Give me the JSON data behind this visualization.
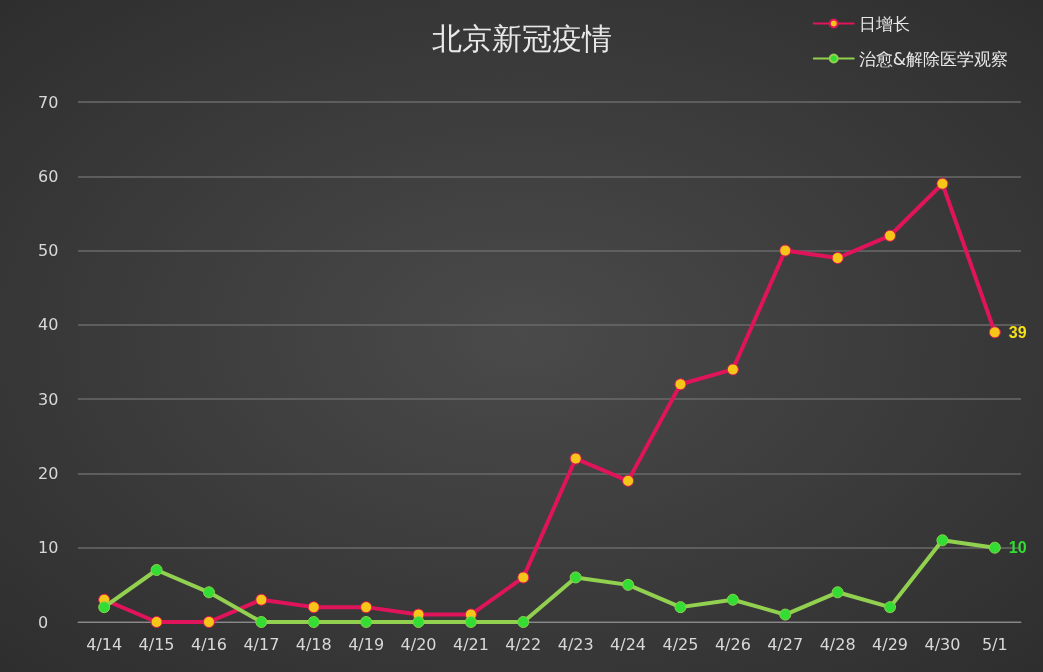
{
  "chart_data": {
    "type": "line",
    "title": "北京新冠疫情",
    "categories": [
      "4/14",
      "4/15",
      "4/16",
      "4/17",
      "4/18",
      "4/19",
      "4/20",
      "4/21",
      "4/22",
      "4/23",
      "4/24",
      "4/25",
      "4/26",
      "4/27",
      "4/28",
      "4/29",
      "4/30",
      "5/1"
    ],
    "series": [
      {
        "name": "日增长",
        "color": "#e0145a",
        "values": [
          3,
          0,
          0,
          3,
          2,
          2,
          1,
          1,
          6,
          22,
          19,
          32,
          34,
          50,
          49,
          52,
          59,
          39
        ],
        "value_labels": [
          null,
          null,
          null,
          null,
          null,
          null,
          null,
          null,
          null,
          null,
          null,
          null,
          null,
          null,
          null,
          null,
          null,
          "39"
        ]
      },
      {
        "name": "治愈&解除医学观察",
        "color": "#92d050",
        "values": [
          2,
          7,
          4,
          0,
          0,
          0,
          0,
          0,
          0,
          6,
          5,
          2,
          3,
          1,
          4,
          2,
          11,
          10
        ],
        "value_labels": [
          null,
          null,
          null,
          null,
          null,
          null,
          null,
          null,
          null,
          null,
          null,
          null,
          null,
          null,
          null,
          null,
          null,
          "10"
        ]
      }
    ],
    "ylim": [
      0,
      70
    ],
    "yticks": [
      0,
      10,
      20,
      30,
      40,
      50,
      60,
      70
    ],
    "grid": "y",
    "legend": "top right",
    "marker": "circle",
    "line_style": "solid"
  }
}
